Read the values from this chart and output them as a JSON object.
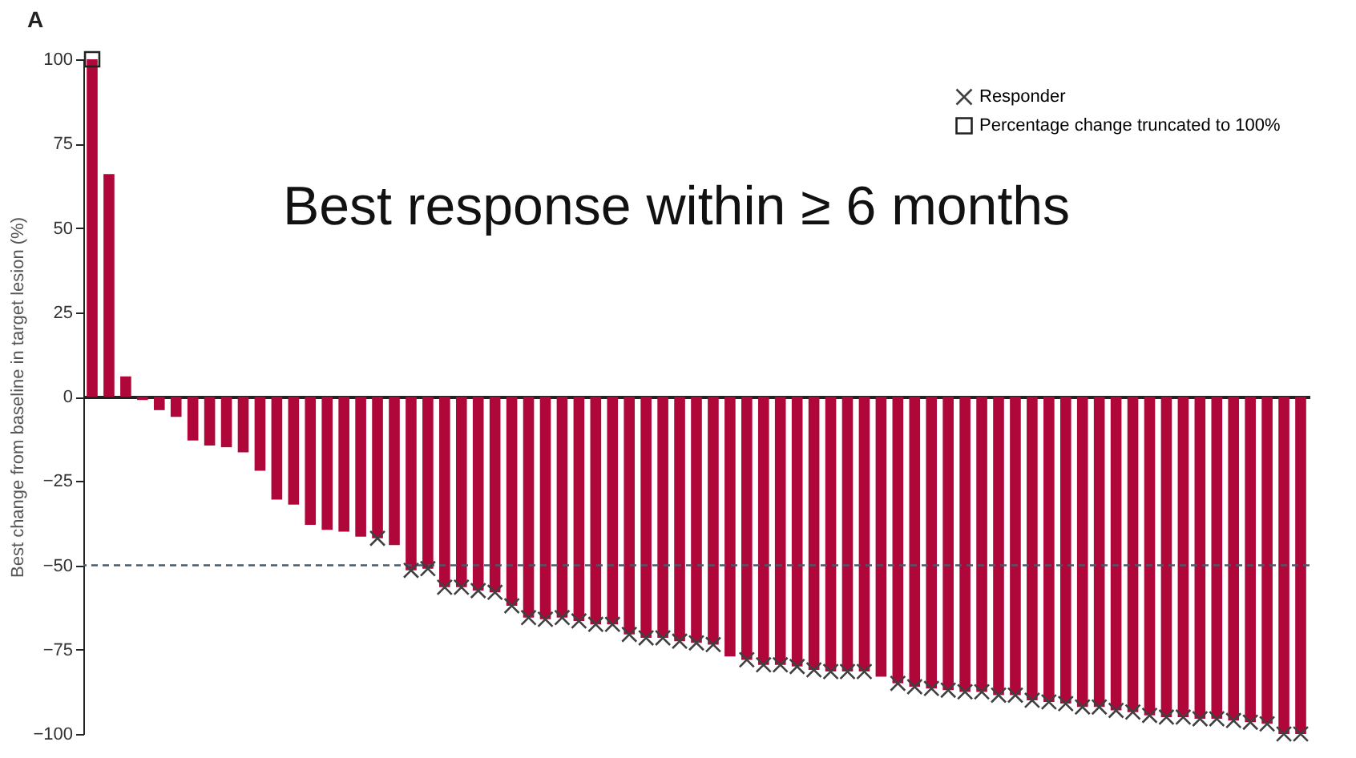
{
  "chart_data": {
    "type": "bar",
    "title": "A",
    "ylabel": "Best change from baseline in target lesion (%)",
    "annotations": [
      "Best response within ≥ 6 months"
    ],
    "categories": [
      null,
      null,
      null,
      null,
      null,
      null,
      null,
      null,
      null,
      null,
      null,
      null,
      null,
      null,
      null,
      null,
      null,
      null,
      null,
      null,
      null,
      null,
      null,
      null,
      null,
      null,
      null,
      null,
      null,
      null,
      null,
      null,
      null,
      null,
      null,
      null,
      null,
      null,
      null,
      null,
      null,
      null,
      null,
      null,
      null,
      null,
      null,
      null,
      null,
      null,
      null,
      null,
      null,
      null,
      null,
      null,
      null,
      null,
      null,
      null,
      null,
      null,
      null,
      null,
      null,
      null,
      null,
      null,
      null,
      null,
      null,
      null,
      null
    ],
    "ylim": [
      -100,
      100
    ],
    "yticks": [
      -100,
      -75,
      -50,
      -25,
      0,
      25,
      50,
      75,
      100
    ],
    "grid": false,
    "legend": "top right",
    "tick_labels": "y",
    "ref_lines": [
      {
        "axis": "y",
        "value": -50,
        "color": "#4a5a66",
        "line_style": "dashed"
      }
    ],
    "series": [
      {
        "color": "#b0073a",
        "values": [
          100,
          66,
          6,
          -1,
          -4,
          -6,
          -13,
          -14.5,
          -15,
          -16.5,
          -22,
          -30.5,
          -32,
          -38,
          -39.5,
          -40,
          -41.5,
          -42,
          -44,
          -51.5,
          -51,
          -56.5,
          -56.5,
          -57.5,
          -58,
          -62,
          -65.5,
          -66,
          -65.5,
          -66.5,
          -67.5,
          -67.5,
          -70.5,
          -71.5,
          -71.5,
          -72.5,
          -73,
          -73.5,
          -77,
          -78,
          -79.5,
          -79.5,
          -80,
          -81,
          -81.5,
          -81.5,
          -81.5,
          -83,
          -85,
          -86,
          -86.5,
          -87,
          -87.5,
          -87.5,
          -88.5,
          -88.5,
          -90,
          -90.5,
          -91,
          -92,
          -92,
          -93,
          -93.5,
          -94.5,
          -95,
          -95,
          -95.5,
          -95.5,
          -96,
          -96.5,
          -97,
          -100,
          -100
        ]
      },
      {
        "name": "Responder",
        "type": "scatter",
        "marker": "cross",
        "color": "#404040",
        "values": [
          null,
          null,
          null,
          null,
          null,
          null,
          null,
          null,
          null,
          null,
          null,
          null,
          null,
          null,
          null,
          null,
          null,
          -42,
          null,
          -51.5,
          -51,
          -56.5,
          -56.5,
          -57.5,
          -58,
          -62,
          -65.5,
          -66,
          -65.5,
          -66.5,
          -67.5,
          -67.5,
          -70.5,
          -71.5,
          -71.5,
          -72.5,
          -73,
          -73.5,
          null,
          -78,
          -79.5,
          -79.5,
          -80,
          -81,
          -81.5,
          -81.5,
          -81.5,
          null,
          -85,
          -86,
          -86.5,
          -87,
          -87.5,
          -87.5,
          -88.5,
          -88.5,
          -90,
          -90.5,
          -91,
          -92,
          -92,
          -93,
          -93.5,
          -94.5,
          -95,
          -95,
          -95.5,
          -95.5,
          -96,
          -96.5,
          -97,
          -100,
          -100
        ]
      },
      {
        "name": "Percentage change truncated to 100%",
        "type": "scatter",
        "marker": "square",
        "color": "#222222",
        "values": [
          100,
          null,
          null,
          null,
          null,
          null,
          null,
          null,
          null,
          null,
          null,
          null,
          null,
          null,
          null,
          null,
          null,
          null,
          null,
          null,
          null,
          null,
          null,
          null,
          null,
          null,
          null,
          null,
          null,
          null,
          null,
          null,
          null,
          null,
          null,
          null,
          null,
          null,
          null,
          null,
          null,
          null,
          null,
          null,
          null,
          null,
          null,
          null,
          null,
          null,
          null,
          null,
          null,
          null,
          null,
          null,
          null,
          null,
          null,
          null,
          null,
          null,
          null,
          null,
          null,
          null,
          null,
          null,
          null,
          null,
          null,
          null,
          null
        ]
      }
    ]
  }
}
